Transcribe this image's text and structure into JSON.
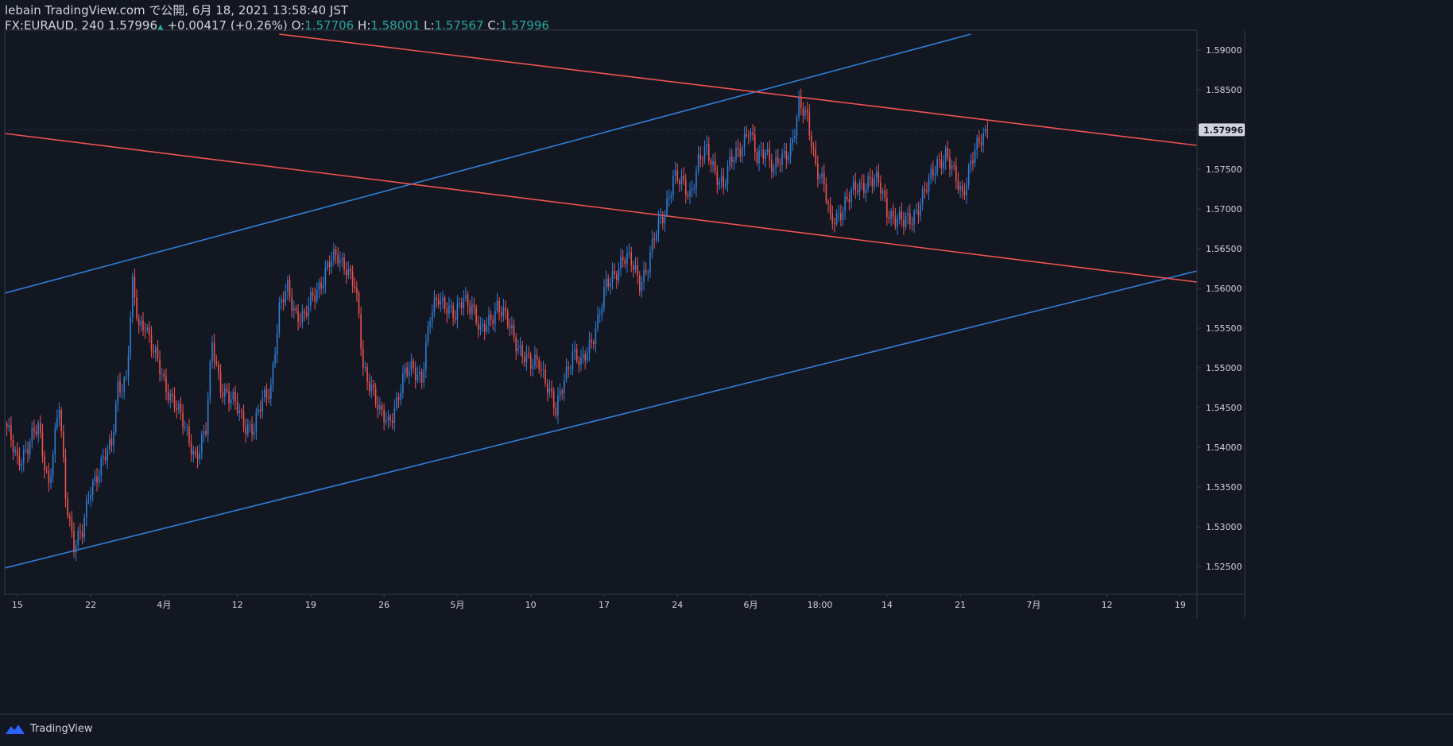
{
  "header": {
    "line1": "lebain TradingView.com で公開, 6月 18, 2021 13:58:40 JST",
    "symbol": "FX:EURAUD, 240",
    "last": "1.57996",
    "up_arrow": "▲",
    "change": "+0.00417 (+0.26%)",
    "o_label": "O:",
    "o_value": "1.57706",
    "h_label": "H:",
    "h_value": "1.58001",
    "l_label": "L:",
    "l_value": "1.57567",
    "c_label": "C:",
    "c_value": "1.57996"
  },
  "footer": {
    "brand": "TradingView",
    "logo_icon": "tradingview-logo-icon"
  },
  "colors": {
    "bg": "#131722",
    "up": "#2f7fd8",
    "down": "#ef5350",
    "blue_line": "#2f7fd8",
    "red_line": "#ef5350",
    "grid": "#363a45",
    "text": "#d1d4dc",
    "badge": "#d1d4dc"
  },
  "chart_data": {
    "type": "candlestick",
    "symbol": "FX:EURAUD",
    "timeframe": "240",
    "y_ticks": [
      "1.59000",
      "1.58500",
      "1.58000",
      "1.57500",
      "1.57000",
      "1.56500",
      "1.56000",
      "1.55500",
      "1.55000",
      "1.54500",
      "1.54000",
      "1.53500",
      "1.53000",
      "1.52500"
    ],
    "ylim": [
      1.5215,
      1.5925
    ],
    "last_price_label": "1.57996",
    "x_ticks": [
      {
        "label": "15",
        "idx": 5
      },
      {
        "label": "22",
        "idx": 40
      },
      {
        "label": "4月",
        "idx": 75
      },
      {
        "label": "12",
        "idx": 110
      },
      {
        "label": "19",
        "idx": 145
      },
      {
        "label": "26",
        "idx": 180
      },
      {
        "label": "5月",
        "idx": 215
      },
      {
        "label": "10",
        "idx": 250
      },
      {
        "label": "17",
        "idx": 285
      },
      {
        "label": "24",
        "idx": 320
      },
      {
        "label": "6月",
        "idx": 355
      },
      {
        "label": "18:00",
        "idx": 388
      },
      {
        "label": "14",
        "idx": 420
      },
      {
        "label": "21",
        "idx": 455
      },
      {
        "label": "7月",
        "idx": 490
      },
      {
        "label": "12",
        "idx": 525
      },
      {
        "label": "19",
        "idx": 560
      }
    ],
    "xlim": [
      -1,
      568
    ],
    "price_path": [
      [
        0,
        1.542
      ],
      [
        5,
        1.5385
      ],
      [
        10,
        1.54
      ],
      [
        15,
        1.5425
      ],
      [
        20,
        1.5355
      ],
      [
        25,
        1.545
      ],
      [
        28,
        1.534
      ],
      [
        32,
        1.528
      ],
      [
        36,
        1.529
      ],
      [
        40,
        1.535
      ],
      [
        45,
        1.538
      ],
      [
        50,
        1.54
      ],
      [
        53,
        1.548
      ],
      [
        57,
        1.5485
      ],
      [
        60,
        1.56
      ],
      [
        63,
        1.555
      ],
      [
        66,
        1.556
      ],
      [
        70,
        1.552
      ],
      [
        75,
        1.548
      ],
      [
        80,
        1.546
      ],
      [
        85,
        1.542
      ],
      [
        90,
        1.539
      ],
      [
        95,
        1.542
      ],
      [
        98,
        1.553
      ],
      [
        102,
        1.548
      ],
      [
        106,
        1.546
      ],
      [
        110,
        1.545
      ],
      [
        114,
        1.543
      ],
      [
        118,
        1.542
      ],
      [
        122,
        1.546
      ],
      [
        126,
        1.548
      ],
      [
        130,
        1.557
      ],
      [
        134,
        1.56
      ],
      [
        138,
        1.557
      ],
      [
        142,
        1.556
      ],
      [
        146,
        1.559
      ],
      [
        150,
        1.561
      ],
      [
        154,
        1.563
      ],
      [
        158,
        1.564
      ],
      [
        162,
        1.563
      ],
      [
        166,
        1.56
      ],
      [
        168,
        1.556
      ],
      [
        170,
        1.55
      ],
      [
        174,
        1.548
      ],
      [
        178,
        1.544
      ],
      [
        182,
        1.543
      ],
      [
        186,
        1.546
      ],
      [
        190,
        1.549
      ],
      [
        194,
        1.55
      ],
      [
        198,
        1.549
      ],
      [
        202,
        1.556
      ],
      [
        206,
        1.559
      ],
      [
        210,
        1.558
      ],
      [
        214,
        1.556
      ],
      [
        218,
        1.559
      ],
      [
        222,
        1.558
      ],
      [
        226,
        1.554
      ],
      [
        230,
        1.556
      ],
      [
        234,
        1.558
      ],
      [
        238,
        1.556
      ],
      [
        242,
        1.554
      ],
      [
        246,
        1.552
      ],
      [
        250,
        1.55
      ],
      [
        254,
        1.551
      ],
      [
        258,
        1.548
      ],
      [
        262,
        1.544
      ],
      [
        266,
        1.549
      ],
      [
        270,
        1.552
      ],
      [
        274,
        1.55
      ],
      [
        278,
        1.553
      ],
      [
        282,
        1.556
      ],
      [
        286,
        1.56
      ],
      [
        290,
        1.562
      ],
      [
        294,
        1.564
      ],
      [
        298,
        1.563
      ],
      [
        302,
        1.561
      ],
      [
        306,
        1.563
      ],
      [
        310,
        1.567
      ],
      [
        314,
        1.57
      ],
      [
        318,
        1.574
      ],
      [
        322,
        1.573
      ],
      [
        326,
        1.572
      ],
      [
        330,
        1.576
      ],
      [
        334,
        1.577
      ],
      [
        338,
        1.575
      ],
      [
        342,
        1.573
      ],
      [
        346,
        1.576
      ],
      [
        350,
        1.578
      ],
      [
        354,
        1.58
      ],
      [
        358,
        1.576
      ],
      [
        362,
        1.578
      ],
      [
        366,
        1.575
      ],
      [
        370,
        1.576
      ],
      [
        374,
        1.578
      ],
      [
        378,
        1.583
      ],
      [
        382,
        1.581
      ],
      [
        386,
        1.576
      ],
      [
        390,
        1.573
      ],
      [
        393,
        1.568
      ],
      [
        396,
        1.569
      ],
      [
        400,
        1.571
      ],
      [
        404,
        1.572
      ],
      [
        408,
        1.573
      ],
      [
        412,
        1.574
      ],
      [
        416,
        1.573
      ],
      [
        420,
        1.57
      ],
      [
        424,
        1.569
      ],
      [
        428,
        1.568
      ],
      [
        432,
        1.569
      ],
      [
        436,
        1.571
      ],
      [
        440,
        1.573
      ],
      [
        444,
        1.576
      ],
      [
        448,
        1.577
      ],
      [
        452,
        1.574
      ],
      [
        456,
        1.572
      ],
      [
        460,
        1.576
      ],
      [
        464,
        1.578
      ],
      [
        468,
        1.58
      ]
    ],
    "trendlines": [
      {
        "name": "blue-upper-channel",
        "color": "blue",
        "p1": [
          -1,
          1.5594
        ],
        "p2": [
          460,
          1.592
        ]
      },
      {
        "name": "blue-lower-channel",
        "color": "blue",
        "p1": [
          -1,
          1.5248
        ],
        "p2": [
          568,
          1.5622
        ]
      },
      {
        "name": "red-upper-channel",
        "color": "red",
        "p1": [
          130,
          1.592
        ],
        "p2": [
          568,
          1.578
        ]
      },
      {
        "name": "red-lower-channel",
        "color": "red",
        "p1": [
          -1,
          1.5795
        ],
        "p2": [
          568,
          1.5608
        ]
      }
    ]
  }
}
